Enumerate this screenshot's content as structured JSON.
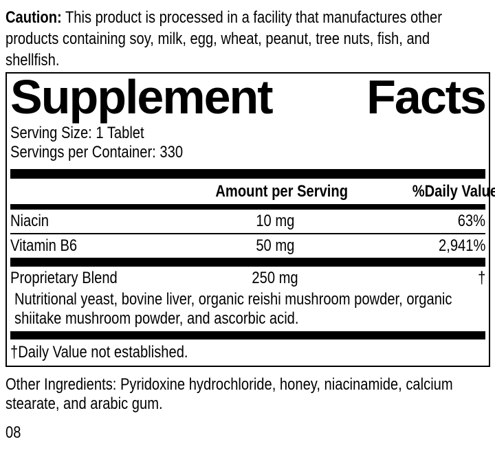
{
  "caution": {
    "label": "Caution:",
    "line1": "This product is processed in a facility that manufactures other",
    "line2": "products containing soy, milk, egg, wheat, peanut, tree nuts, fish, and",
    "line3": "shellfish."
  },
  "panel": {
    "title_word1": "Supplement",
    "title_word2": "Facts",
    "serving_size": "Serving Size: 1 Tablet",
    "servings_per_container": "Servings per Container: 330",
    "header": {
      "amount": "Amount per Serving",
      "daily_value": "%Daily Value"
    },
    "rows": [
      {
        "name": "Niacin",
        "amount": "10 mg",
        "dv": "63%"
      },
      {
        "name": "Vitamin B6",
        "amount": "50 mg",
        "dv": "2,941%"
      },
      {
        "name": "Proprietary Blend",
        "amount": "250 mg",
        "dv": "†"
      }
    ],
    "blend_line1": "Nutritional yeast, bovine liver, organic reishi mushroom powder, organic",
    "blend_line2": "shiitake mushroom powder, and ascorbic acid.",
    "footnote": "†Daily Value not established."
  },
  "other_ingredients": {
    "line1": "Other Ingredients: Pyridoxine hydrochloride, honey, niacinamide, calcium",
    "line2": "stearate, and arabic gum."
  },
  "page_code": "08",
  "colors": {
    "text": "#000000",
    "background": "#ffffff",
    "rules_and_bars": "#000000"
  }
}
